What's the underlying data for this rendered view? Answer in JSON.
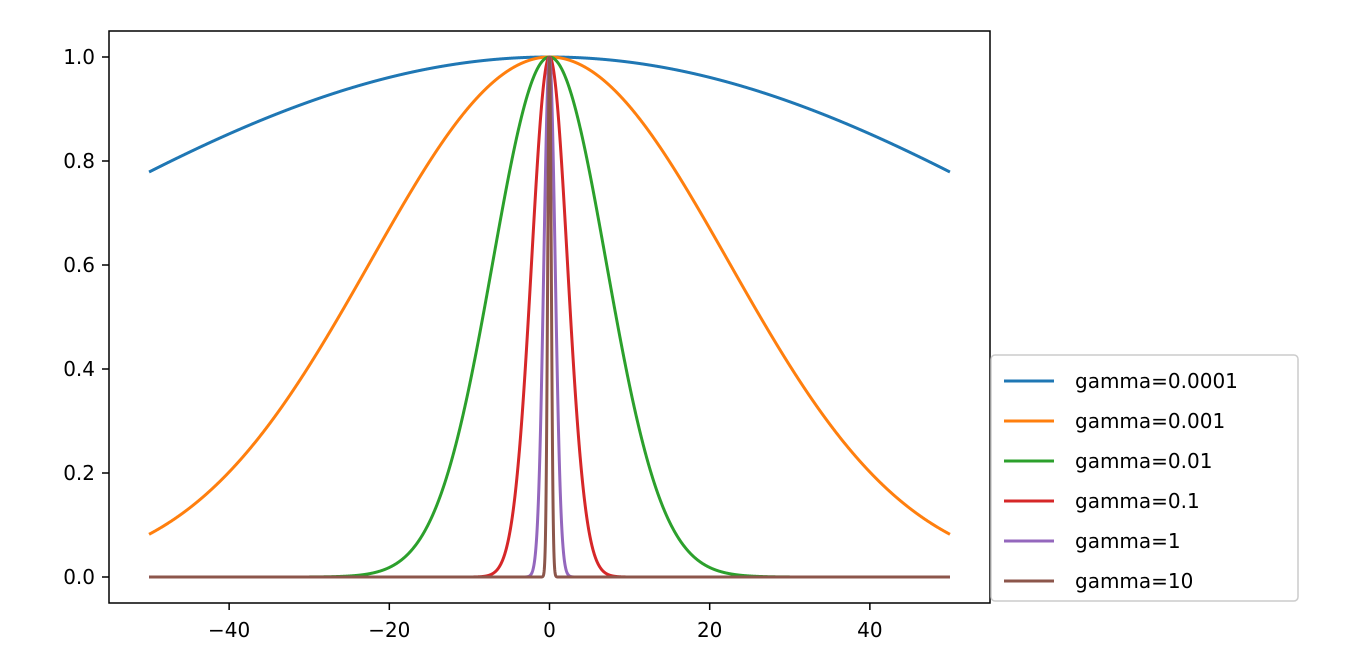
{
  "chart_data": {
    "type": "line",
    "title": "",
    "xlabel": "",
    "ylabel": "",
    "xlim": [
      -55,
      55
    ],
    "ylim": [
      -0.05,
      1.05
    ],
    "x_range": [
      -50,
      50
    ],
    "x_ticks": [
      -40,
      -20,
      0,
      20,
      40
    ],
    "x_tick_labels": [
      "−40",
      "−20",
      "0",
      "20",
      "40"
    ],
    "y_ticks": [
      0.0,
      0.2,
      0.4,
      0.6,
      0.8,
      1.0
    ],
    "y_tick_labels": [
      "0.0",
      "0.2",
      "0.4",
      "0.6",
      "0.8",
      "1.0"
    ],
    "grid": false,
    "legend_position": "lower-right-outside",
    "series": [
      {
        "name": "gamma=0.0001",
        "gamma": 0.0001,
        "color": "#1f77b4",
        "x": [
          -50,
          -40,
          -30,
          -20,
          -10,
          0,
          10,
          20,
          30,
          40,
          50
        ],
        "y": [
          0.779,
          0.852,
          0.914,
          0.961,
          0.99,
          1.0,
          0.99,
          0.961,
          0.914,
          0.852,
          0.779
        ]
      },
      {
        "name": "gamma=0.001",
        "gamma": 0.001,
        "color": "#ff7f0e",
        "x": [
          -50,
          -40,
          -30,
          -20,
          -10,
          0,
          10,
          20,
          30,
          40,
          50
        ],
        "y": [
          0.082,
          0.202,
          0.407,
          0.67,
          0.905,
          1.0,
          0.905,
          0.67,
          0.407,
          0.202,
          0.082
        ]
      },
      {
        "name": "gamma=0.01",
        "gamma": 0.01,
        "color": "#2ca02c",
        "x": [
          -30,
          -20,
          -15,
          -10,
          -5,
          0,
          5,
          10,
          15,
          20,
          30
        ],
        "y": [
          0.0001,
          0.018,
          0.105,
          0.368,
          0.779,
          1.0,
          0.779,
          0.368,
          0.105,
          0.018,
          0.0001
        ]
      },
      {
        "name": "gamma=0.1",
        "gamma": 0.1,
        "color": "#d62728",
        "x": [
          -8,
          -6,
          -4,
          -2,
          -1,
          0,
          1,
          2,
          4,
          6,
          8
        ],
        "y": [
          0.002,
          0.027,
          0.202,
          0.67,
          0.905,
          1.0,
          0.905,
          0.67,
          0.202,
          0.027,
          0.002
        ]
      },
      {
        "name": "gamma=1",
        "gamma": 1,
        "color": "#9467bd",
        "x": [
          -3,
          -2,
          -1,
          -0.5,
          0,
          0.5,
          1,
          2,
          3
        ],
        "y": [
          0.0001,
          0.018,
          0.368,
          0.779,
          1.0,
          0.779,
          0.368,
          0.018,
          0.0001
        ]
      },
      {
        "name": "gamma=10",
        "gamma": 10,
        "color": "#8c564b",
        "x": [
          -1,
          -0.5,
          -0.2,
          0,
          0.2,
          0.5,
          1
        ],
        "y": [
          0.0,
          0.082,
          0.67,
          1.0,
          0.67,
          0.082,
          0.0
        ]
      }
    ]
  }
}
